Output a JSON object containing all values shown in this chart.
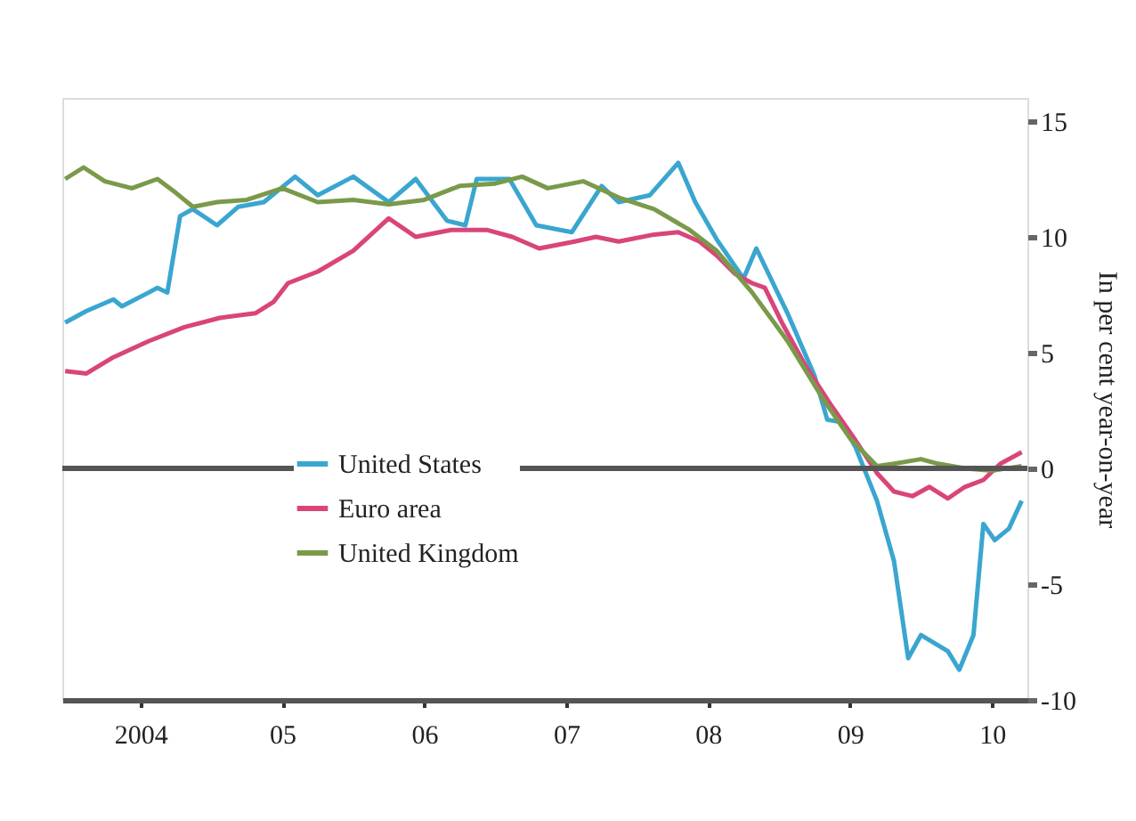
{
  "chart_data": {
    "type": "line",
    "ylabel": "In per cent year-on-year",
    "xlim": [
      2003.45,
      2010.25
    ],
    "xticks": [
      {
        "value": 2004,
        "label": "2004"
      },
      {
        "value": 2005,
        "label": "05"
      },
      {
        "value": 2006,
        "label": "06"
      },
      {
        "value": 2007,
        "label": "07"
      },
      {
        "value": 2008,
        "label": "08"
      },
      {
        "value": 2009,
        "label": "09"
      },
      {
        "value": 2010,
        "label": "10"
      }
    ],
    "ylim": [
      -10,
      16
    ],
    "yticks": [
      -10,
      -5,
      0,
      5,
      10,
      15
    ],
    "grid": false,
    "legend": "bottom left",
    "line_style": "solid",
    "marker": "none",
    "ref_lines": [
      {
        "axis": "y",
        "value": 0,
        "color": "#555555"
      }
    ],
    "series": [
      {
        "name": "United States",
        "color": "#3aa6d0",
        "x": [
          2003.47,
          2003.62,
          2003.81,
          2003.87,
          2004.06,
          2004.12,
          2004.19,
          2004.28,
          2004.37,
          2004.54,
          2004.69,
          2004.87,
          2005.09,
          2005.25,
          2005.5,
          2005.75,
          2005.94,
          2006.16,
          2006.29,
          2006.37,
          2006.6,
          2006.79,
          2007.04,
          2007.25,
          2007.37,
          2007.59,
          2007.79,
          2007.91,
          2008.06,
          2008.25,
          2008.34,
          2008.56,
          2008.75,
          2008.84,
          2008.94,
          2009.04,
          2009.19,
          2009.31,
          2009.41,
          2009.5,
          2009.69,
          2009.77,
          2009.87,
          2009.94,
          2010.02,
          2010.12,
          2010.21
        ],
        "values": [
          6.3,
          6.8,
          7.3,
          7.0,
          7.6,
          7.8,
          7.6,
          10.9,
          11.2,
          10.5,
          11.3,
          11.5,
          12.6,
          11.8,
          12.6,
          11.5,
          12.5,
          10.7,
          10.5,
          12.5,
          12.5,
          10.5,
          10.2,
          12.2,
          11.5,
          11.8,
          13.2,
          11.5,
          9.9,
          8.2,
          9.5,
          6.7,
          4.0,
          2.1,
          2.0,
          0.9,
          -1.4,
          -4.0,
          -8.2,
          -7.2,
          -7.9,
          -8.7,
          -7.2,
          -2.4,
          -3.1,
          -2.6,
          -1.4
        ]
      },
      {
        "name": "Euro area",
        "color": "#d9457a",
        "x": [
          2003.47,
          2003.62,
          2003.81,
          2004.06,
          2004.31,
          2004.56,
          2004.81,
          2004.94,
          2005.04,
          2005.25,
          2005.5,
          2005.75,
          2005.94,
          2006.19,
          2006.44,
          2006.62,
          2006.81,
          2007.06,
          2007.21,
          2007.37,
          2007.62,
          2007.79,
          2007.94,
          2008.06,
          2008.19,
          2008.31,
          2008.4,
          2008.52,
          2008.69,
          2008.87,
          2009.04,
          2009.19,
          2009.31,
          2009.44,
          2009.56,
          2009.69,
          2009.81,
          2009.94,
          2010.06,
          2010.21
        ],
        "values": [
          4.2,
          4.1,
          4.8,
          5.5,
          6.1,
          6.5,
          6.7,
          7.2,
          8.0,
          8.5,
          9.4,
          10.8,
          10.0,
          10.3,
          10.3,
          10.0,
          9.5,
          9.8,
          10.0,
          9.8,
          10.1,
          10.2,
          9.8,
          9.2,
          8.4,
          8.0,
          7.8,
          6.3,
          4.4,
          2.7,
          1.2,
          -0.2,
          -1.0,
          -1.2,
          -0.8,
          -1.3,
          -0.8,
          -0.5,
          0.2,
          0.7
        ]
      },
      {
        "name": "United Kingdom",
        "color": "#7a9a4a",
        "x": [
          2003.47,
          2003.6,
          2003.75,
          2003.94,
          2004.12,
          2004.25,
          2004.37,
          2004.54,
          2004.75,
          2005.0,
          2005.25,
          2005.5,
          2005.75,
          2006.0,
          2006.25,
          2006.5,
          2006.69,
          2006.87,
          2007.12,
          2007.37,
          2007.62,
          2007.87,
          2008.06,
          2008.31,
          2008.56,
          2008.81,
          2009.0,
          2009.19,
          2009.31,
          2009.5,
          2009.62,
          2009.81,
          2010.0,
          2010.21
        ],
        "values": [
          12.5,
          13.0,
          12.4,
          12.1,
          12.5,
          11.9,
          11.3,
          11.5,
          11.6,
          12.1,
          11.5,
          11.6,
          11.4,
          11.6,
          12.2,
          12.3,
          12.6,
          12.1,
          12.4,
          11.7,
          11.2,
          10.3,
          9.4,
          7.6,
          5.5,
          3.0,
          1.3,
          0.1,
          0.2,
          0.4,
          0.2,
          0.0,
          -0.1,
          0.1
        ]
      }
    ]
  }
}
